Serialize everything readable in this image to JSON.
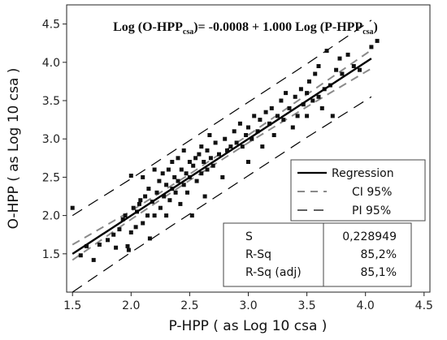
{
  "chart_data": {
    "type": "scatter",
    "equation": {
      "prefix": "Log (O-HPP",
      "sub1": "csa",
      "middle": ")= -0.0008 + 1.000 Log (P-HPP",
      "sub2": "csa",
      "suffix": ")"
    },
    "xlabel": "P-HPP ( as Log 10 csa )",
    "ylabel": "O-HPP ( as Log 10 csa )",
    "xlim": [
      1.45,
      4.55
    ],
    "ylim": [
      1.0,
      4.75
    ],
    "x_ticks": [
      "1.5",
      "2.0",
      "2.5",
      "3.0",
      "3.5",
      "4.0",
      "4.5"
    ],
    "y_ticks": [
      "1.5",
      "2.0",
      "2.5",
      "3.0",
      "3.5",
      "4.0",
      "4.5"
    ],
    "regression": {
      "intercept": -0.0008,
      "slope": 1.0,
      "x_range": [
        1.5,
        4.05
      ]
    },
    "ci_band": [
      [
        1.5,
        1.42,
        1.62
      ],
      [
        2.0,
        1.95,
        2.06
      ],
      [
        2.5,
        2.46,
        2.54
      ],
      [
        3.0,
        2.95,
        3.05
      ],
      [
        3.5,
        3.42,
        3.58
      ],
      [
        4.05,
        3.92,
        4.16
      ]
    ],
    "pi_band": [
      [
        1.5,
        1.0,
        2.0
      ],
      [
        2.0,
        1.52,
        2.48
      ],
      [
        2.5,
        2.02,
        2.98
      ],
      [
        3.0,
        2.52,
        3.48
      ],
      [
        3.5,
        3.02,
        3.98
      ],
      [
        4.05,
        3.55,
        4.55
      ]
    ],
    "legend": {
      "position": "lower-right",
      "items": [
        {
          "label": "Regression",
          "style": "solid"
        },
        {
          "label": "CI  95%",
          "style": "dashed-gray"
        },
        {
          "label": "PI  95%",
          "style": "dashed"
        }
      ]
    },
    "stats": [
      {
        "label": "S",
        "value": "0,228949"
      },
      {
        "label": "R-Sq",
        "value": "85,2%"
      },
      {
        "label": "R-Sq (adj)",
        "value": "85,1%"
      }
    ],
    "points": [
      [
        1.5,
        2.1
      ],
      [
        1.57,
        1.48
      ],
      [
        1.62,
        1.6
      ],
      [
        1.68,
        1.42
      ],
      [
        1.73,
        1.62
      ],
      [
        1.8,
        1.68
      ],
      [
        1.85,
        1.75
      ],
      [
        1.87,
        1.58
      ],
      [
        1.9,
        1.82
      ],
      [
        1.93,
        1.95
      ],
      [
        1.95,
        2.0
      ],
      [
        1.97,
        1.6
      ],
      [
        1.98,
        1.55
      ],
      [
        2.0,
        1.78
      ],
      [
        2.0,
        2.52
      ],
      [
        2.02,
        2.1
      ],
      [
        2.04,
        1.85
      ],
      [
        2.05,
        2.05
      ],
      [
        2.07,
        2.15
      ],
      [
        2.08,
        2.2
      ],
      [
        2.1,
        1.9
      ],
      [
        2.1,
        2.5
      ],
      [
        2.12,
        2.25
      ],
      [
        2.14,
        2.0
      ],
      [
        2.15,
        2.35
      ],
      [
        2.16,
        1.7
      ],
      [
        2.18,
        2.18
      ],
      [
        2.2,
        2.0
      ],
      [
        2.2,
        2.6
      ],
      [
        2.22,
        2.3
      ],
      [
        2.24,
        2.45
      ],
      [
        2.25,
        2.1
      ],
      [
        2.27,
        2.55
      ],
      [
        2.28,
        2.25
      ],
      [
        2.3,
        2.4
      ],
      [
        2.3,
        2.0
      ],
      [
        2.32,
        2.6
      ],
      [
        2.33,
        2.2
      ],
      [
        2.35,
        2.35
      ],
      [
        2.35,
        2.7
      ],
      [
        2.37,
        2.5
      ],
      [
        2.38,
        2.3
      ],
      [
        2.4,
        2.45
      ],
      [
        2.4,
        2.75
      ],
      [
        2.42,
        2.15
      ],
      [
        2.43,
        2.6
      ],
      [
        2.45,
        2.4
      ],
      [
        2.45,
        2.85
      ],
      [
        2.47,
        2.55
      ],
      [
        2.48,
        2.3
      ],
      [
        2.5,
        2.7
      ],
      [
        2.5,
        2.5
      ],
      [
        2.52,
        2.0
      ],
      [
        2.53,
        2.65
      ],
      [
        2.55,
        2.75
      ],
      [
        2.56,
        2.45
      ],
      [
        2.58,
        2.8
      ],
      [
        2.6,
        2.55
      ],
      [
        2.6,
        2.9
      ],
      [
        2.62,
        2.7
      ],
      [
        2.63,
        2.25
      ],
      [
        2.65,
        2.85
      ],
      [
        2.65,
        2.6
      ],
      [
        2.67,
        3.05
      ],
      [
        2.68,
        2.75
      ],
      [
        2.7,
        2.65
      ],
      [
        2.72,
        2.95
      ],
      [
        2.75,
        2.8
      ],
      [
        2.78,
        2.5
      ],
      [
        2.8,
        3.0
      ],
      [
        2.82,
        2.85
      ],
      [
        2.85,
        2.9
      ],
      [
        2.88,
        3.1
      ],
      [
        2.9,
        2.95
      ],
      [
        2.93,
        3.2
      ],
      [
        2.95,
        2.9
      ],
      [
        2.98,
        3.05
      ],
      [
        3.0,
        3.15
      ],
      [
        3.0,
        2.7
      ],
      [
        3.03,
        3.0
      ],
      [
        3.05,
        3.3
      ],
      [
        3.08,
        3.1
      ],
      [
        3.1,
        3.25
      ],
      [
        3.12,
        2.9
      ],
      [
        3.15,
        3.35
      ],
      [
        3.18,
        3.2
      ],
      [
        3.2,
        3.4
      ],
      [
        3.22,
        3.05
      ],
      [
        3.25,
        3.3
      ],
      [
        3.28,
        3.5
      ],
      [
        3.3,
        3.25
      ],
      [
        3.32,
        3.6
      ],
      [
        3.35,
        3.4
      ],
      [
        3.38,
        3.15
      ],
      [
        3.4,
        3.55
      ],
      [
        3.42,
        3.3
      ],
      [
        3.45,
        3.65
      ],
      [
        3.47,
        3.45
      ],
      [
        3.5,
        3.6
      ],
      [
        3.5,
        3.3
      ],
      [
        3.52,
        3.75
      ],
      [
        3.55,
        3.5
      ],
      [
        3.57,
        3.85
      ],
      [
        3.6,
        3.55
      ],
      [
        3.6,
        3.95
      ],
      [
        3.63,
        3.4
      ],
      [
        3.65,
        3.65
      ],
      [
        3.67,
        4.15
      ],
      [
        3.7,
        3.7
      ],
      [
        3.72,
        3.3
      ],
      [
        3.75,
        3.9
      ],
      [
        3.78,
        4.05
      ],
      [
        3.8,
        3.85
      ],
      [
        3.85,
        4.1
      ],
      [
        3.9,
        3.95
      ],
      [
        3.95,
        3.9
      ],
      [
        4.05,
        4.2
      ],
      [
        4.1,
        4.28
      ]
    ]
  }
}
